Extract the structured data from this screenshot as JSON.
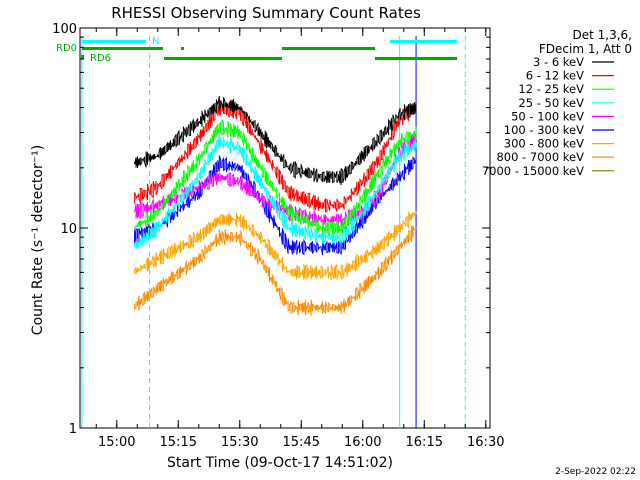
{
  "chart_data": {
    "type": "line",
    "title": "RHESSI Observing Summary Count Rates",
    "xlabel": "Start Time (09-Oct-17 14:51:02)",
    "ylabel": "Count Rate (s⁻¹ detector⁻¹)",
    "y_scale": "log",
    "ylim": [
      1,
      100
    ],
    "xlim": [
      "14:51:02",
      "16:31:02"
    ],
    "x_ticks": [
      "15:00",
      "15:15",
      "15:30",
      "15:45",
      "16:00",
      "16:15",
      "16:30"
    ],
    "y_ticks": [
      "1",
      "10",
      "100"
    ],
    "legend_position": "right",
    "legend_header": [
      "Det 1,3,6,",
      "FDecim 1, Att 0"
    ],
    "timestamp": "2-Sep-2022 02:22",
    "flags": [
      {
        "label": "RD0",
        "color": "#00aa00"
      },
      {
        "label": "RD6",
        "color": "#00aa00"
      },
      {
        "label": "N",
        "color": "#00ffff"
      }
    ],
    "vertical_markers": [
      {
        "time": "14:51:30",
        "style": "solid",
        "color": "#00ffff"
      },
      {
        "time": "15:08:00",
        "style": "dashed",
        "color": "#00ffff"
      },
      {
        "time": "16:09:00",
        "style": "solid",
        "color": "#00ffff"
      },
      {
        "time": "16:13:00",
        "style": "solid",
        "color": "#0000ff"
      },
      {
        "time": "16:25:00",
        "style": "dashed",
        "color": "#00ffff"
      }
    ],
    "time_points": [
      "14:55",
      "15:04",
      "15:10",
      "15:20",
      "15:25",
      "15:30",
      "15:35",
      "15:42",
      "15:50",
      "15:55",
      "16:00",
      "16:04",
      "16:09",
      "16:13"
    ],
    "series": [
      {
        "name": "3 - 6 keV",
        "color": "#000000",
        "values": [
          null,
          21,
          23,
          34,
          42,
          40,
          30,
          20,
          18,
          18,
          23,
          28,
          37,
          40
        ]
      },
      {
        "name": "6 - 12 keV",
        "color": "#ff0000",
        "values": [
          null,
          14,
          16,
          28,
          40,
          38,
          26,
          15,
          13,
          13,
          17,
          22,
          35,
          40
        ]
      },
      {
        "name": "12 - 25 keV",
        "color": "#00ff00",
        "values": [
          null,
          10,
          12,
          22,
          32,
          30,
          20,
          12,
          10,
          10,
          14,
          19,
          27,
          30
        ]
      },
      {
        "name": "25 - 50 keV",
        "color": "#00ffff",
        "values": [
          null,
          8,
          10,
          18,
          27,
          25,
          17,
          10,
          9,
          9,
          12,
          16,
          23,
          26
        ]
      },
      {
        "name": "50 - 100 keV",
        "color": "#ff00ff",
        "values": [
          null,
          12,
          13,
          16,
          18,
          17,
          14,
          12,
          11,
          11,
          12,
          15,
          24,
          28
        ]
      },
      {
        "name": "100 - 300 keV",
        "color": "#0000ff",
        "values": [
          null,
          9,
          10,
          15,
          21,
          20,
          14,
          8,
          8,
          8,
          11,
          14,
          18,
          22
        ]
      },
      {
        "name": "300 - 800 keV",
        "color": "#ffa500",
        "values": [
          null,
          6,
          7,
          9,
          11,
          11,
          9,
          6,
          6,
          6,
          7,
          8,
          10,
          12
        ]
      },
      {
        "name": "800 - 7000 keV",
        "color": "#ff8c00",
        "values": [
          null,
          4,
          5,
          7,
          9,
          9,
          7,
          4,
          4,
          4,
          5,
          6,
          8,
          10
        ]
      },
      {
        "name": "7000 - 15000 keV",
        "color": "#808000",
        "values": [
          null,
          null,
          null,
          null,
          null,
          null,
          null,
          null,
          null,
          null,
          null,
          null,
          null,
          null
        ]
      }
    ]
  }
}
